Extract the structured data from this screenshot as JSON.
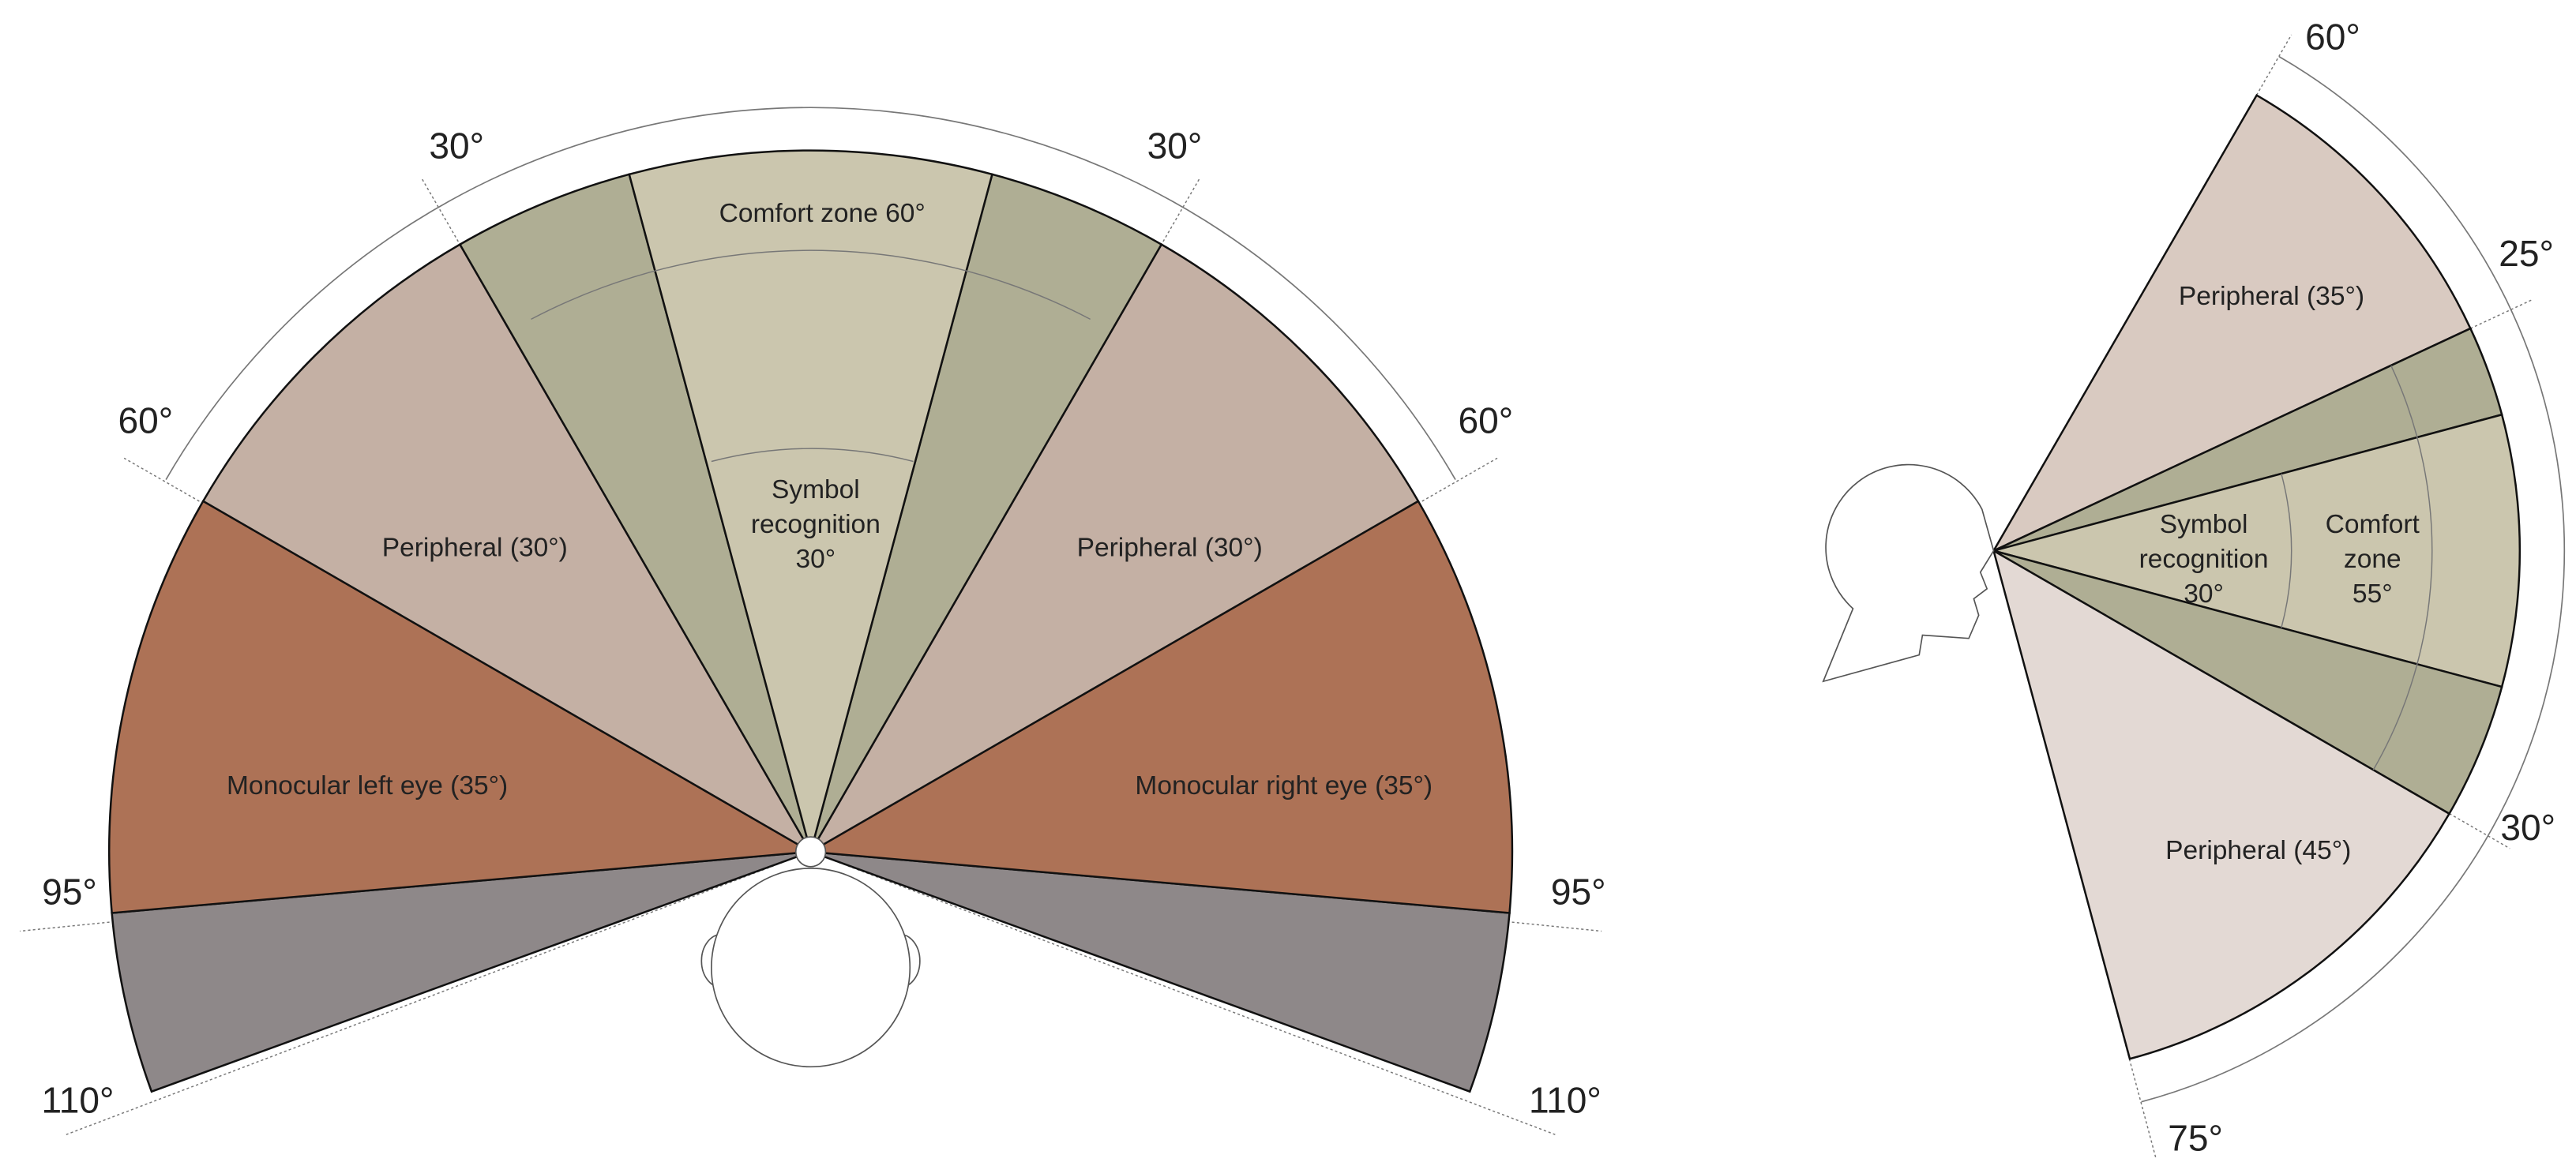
{
  "front_view": {
    "angle_labels": [
      "30°",
      "30°",
      "60°",
      "60°",
      "95°",
      "95°",
      "110°",
      "110°"
    ],
    "comfort_zone": "Comfort zone 60°",
    "symbol_recognition": [
      "Symbol",
      "recognition",
      "30°"
    ],
    "peripheral_left": "Peripheral (30°)",
    "peripheral_right": "Peripheral (30°)",
    "monocular_left": "Monocular left eye (35°)",
    "monocular_right": "Monocular right eye (35°)"
  },
  "side_view": {
    "angle_labels": [
      "60°",
      "25°",
      "30°",
      "75°"
    ],
    "peripheral_upper": "Peripheral (35°)",
    "symbol_recognition": [
      "Symbol",
      "recognition",
      "30°"
    ],
    "comfort_zone": [
      "Comfort",
      "zone",
      "55°"
    ],
    "peripheral_lower": "Peripheral (45°)"
  }
}
